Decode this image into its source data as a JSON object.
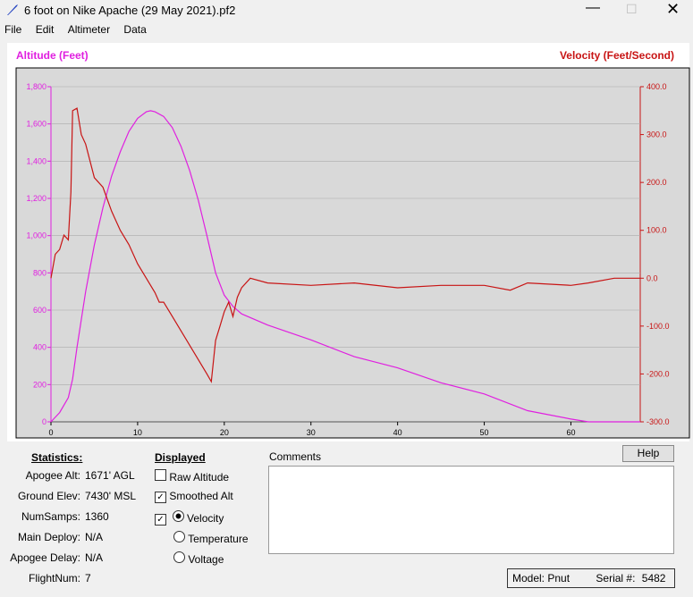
{
  "window": {
    "title": "6 foot on Nike Apache (29 May 2021).pf2",
    "menu": [
      "File",
      "Edit",
      "Altimeter",
      "Data"
    ]
  },
  "chart_data": {
    "type": "line",
    "ylabel": "Altitude (Feet)",
    "y2label": "Velocity (Feet/Second)",
    "xlim": [
      0,
      68
    ],
    "xticks": [
      0,
      10,
      20,
      30,
      40,
      50,
      60
    ],
    "ylim": [
      0,
      1800
    ],
    "yticks": [
      0,
      200,
      400,
      600,
      800,
      {
        "value": 1000,
        "label": "1,000"
      },
      {
        "value": 1200,
        "label": "1,200"
      },
      {
        "value": 1400,
        "label": "1,400"
      },
      {
        "value": 1600,
        "label": "1,600"
      },
      {
        "value": 1800,
        "label": "1,800"
      }
    ],
    "y2lim": [
      -300,
      400
    ],
    "y2ticks": [
      {
        "value": -300,
        "label": "-300.0"
      },
      {
        "value": -200,
        "label": "-200.0"
      },
      {
        "value": -100,
        "label": "-100.0"
      },
      {
        "value": 0,
        "label": "0.0"
      },
      {
        "value": 100,
        "label": "100.0"
      },
      {
        "value": 200,
        "label": "200.0"
      },
      {
        "value": 300,
        "label": "300.0"
      },
      {
        "value": 400,
        "label": "400.0"
      }
    ],
    "grid": true,
    "series": [
      {
        "name": "Smoothed Alt",
        "color": "#e020e0",
        "axis": "y",
        "x": [
          0,
          1,
          2,
          2.5,
          3,
          4,
          5,
          6,
          7,
          8,
          9,
          10,
          11,
          11.5,
          12,
          13,
          14,
          15,
          16,
          17,
          18,
          19,
          20,
          21,
          22,
          25,
          30,
          35,
          40,
          45,
          50,
          55,
          60,
          62,
          68
        ],
        "values": [
          0,
          50,
          130,
          230,
          400,
          700,
          950,
          1150,
          1320,
          1450,
          1560,
          1630,
          1665,
          1671,
          1665,
          1640,
          1580,
          1480,
          1350,
          1190,
          1000,
          800,
          680,
          620,
          580,
          520,
          440,
          350,
          290,
          210,
          150,
          60,
          15,
          0,
          0
        ]
      },
      {
        "name": "Velocity",
        "color": "#c81414",
        "axis": "y2",
        "x": [
          0,
          0.5,
          1,
          1.5,
          2,
          2.3,
          2.5,
          3,
          3.5,
          4,
          5,
          6,
          7,
          8,
          9,
          10,
          11,
          12,
          12.5,
          13,
          14,
          15,
          16,
          17,
          18,
          18.5,
          19,
          19.5,
          20,
          20.5,
          21,
          21.5,
          22,
          23,
          25,
          30,
          35,
          40,
          45,
          50,
          53,
          55,
          60,
          62,
          65,
          68
        ],
        "values": [
          0,
          50,
          60,
          90,
          80,
          180,
          350,
          355,
          300,
          280,
          210,
          190,
          140,
          100,
          70,
          30,
          0,
          -30,
          -50,
          -50,
          -80,
          -110,
          -140,
          -170,
          -200,
          -216,
          -130,
          -100,
          -70,
          -50,
          -80,
          -40,
          -20,
          0,
          -10,
          -15,
          -10,
          -20,
          -15,
          -15,
          -25,
          -10,
          -15,
          -10,
          0,
          0
        ]
      }
    ]
  },
  "statistics": {
    "title": "Statistics:",
    "rows": [
      [
        "Apogee Alt:",
        "1671' AGL"
      ],
      [
        "Ground Elev:",
        "7430' MSL"
      ],
      [
        "NumSamps:",
        "1360"
      ],
      [
        "Main Deploy:",
        "N/A"
      ],
      [
        "Apogee Delay:",
        "N/A"
      ],
      [
        "FlightNum:",
        "7"
      ]
    ]
  },
  "displayed": {
    "title": "Displayed",
    "options": [
      "Raw Altitude",
      "Smoothed Alt",
      "Velocity",
      "Temperature",
      "Voltage"
    ]
  },
  "comments": {
    "label": "Comments"
  },
  "help": "Help",
  "device": {
    "model_label": "Model:",
    "model": "Pnut",
    "serial_label": "Serial #:",
    "serial": "5482"
  }
}
